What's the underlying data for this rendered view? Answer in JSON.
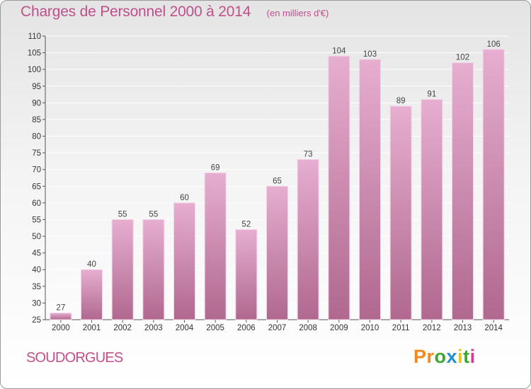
{
  "header": {
    "title": "Charges de Personnel 2000 à 2014",
    "unit": "(en milliers d'€)"
  },
  "footer": {
    "commune": "SOUDORGUES",
    "logo": [
      "P",
      "r",
      "o",
      "x",
      "i",
      "t",
      "i"
    ],
    "logo_colors": [
      "#f08a1c",
      "#f08a1c",
      "#3fa535",
      "#1f8fd6",
      "#e8c31a",
      "#3fa535",
      "#d23c8c"
    ]
  },
  "colors": {
    "bar_top": "#e6aed0",
    "bar_bottom": "#b0688f",
    "grid": "#ffffff",
    "axis": "#555555"
  },
  "chart_data": {
    "type": "bar",
    "title": "Charges de Personnel 2000 à 2014",
    "xlabel": "",
    "ylabel": "",
    "categories": [
      "2000",
      "2001",
      "2002",
      "2003",
      "2004",
      "2005",
      "2006",
      "2007",
      "2008",
      "2009",
      "2010",
      "2011",
      "2012",
      "2013",
      "2014"
    ],
    "values": [
      27,
      40,
      55,
      55,
      60,
      69,
      52,
      65,
      73,
      104,
      103,
      89,
      91,
      102,
      106
    ],
    "ylim": [
      25,
      110
    ],
    "ytick_step": 5,
    "grid": true
  }
}
